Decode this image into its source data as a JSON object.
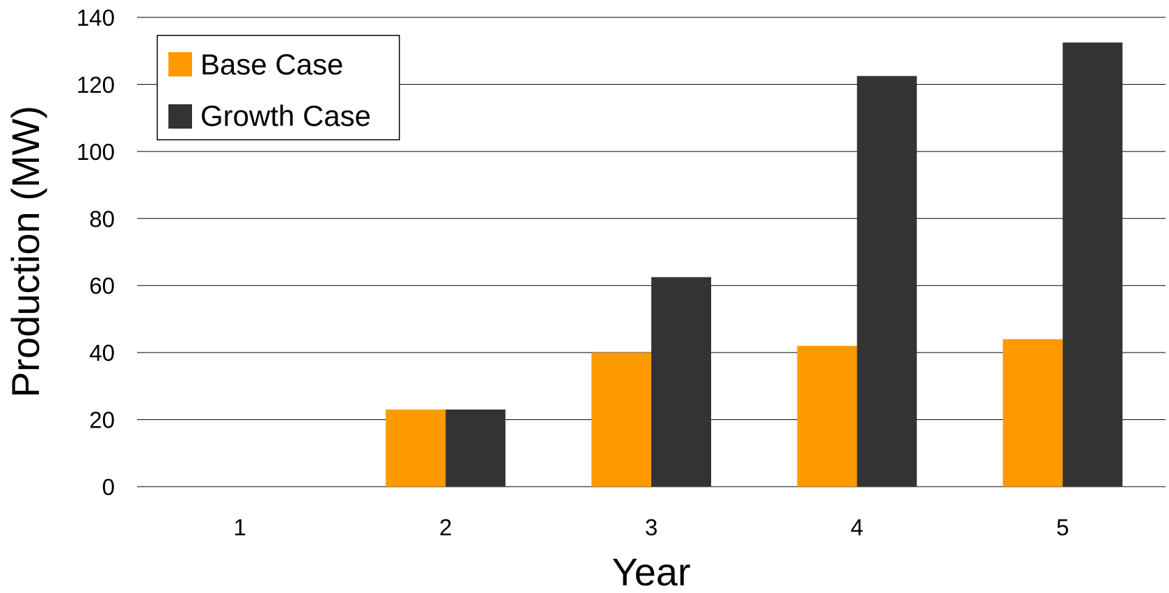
{
  "chart_data": {
    "type": "bar",
    "title": "",
    "xlabel": "Year",
    "ylabel": "Production (MW)",
    "categories": [
      "1",
      "2",
      "3",
      "4",
      "5"
    ],
    "series": [
      {
        "name": "Base Case",
        "color": "#FF9900",
        "values": [
          0,
          23,
          40,
          42,
          44
        ]
      },
      {
        "name": "Growth Case",
        "color": "#333333",
        "values": [
          0,
          23,
          62.5,
          122.5,
          132.5
        ]
      }
    ],
    "ylim": [
      0,
      140
    ],
    "yticks": [
      0,
      20,
      40,
      60,
      80,
      100,
      120,
      140
    ],
    "grid": true,
    "legend_position": "top-left"
  }
}
